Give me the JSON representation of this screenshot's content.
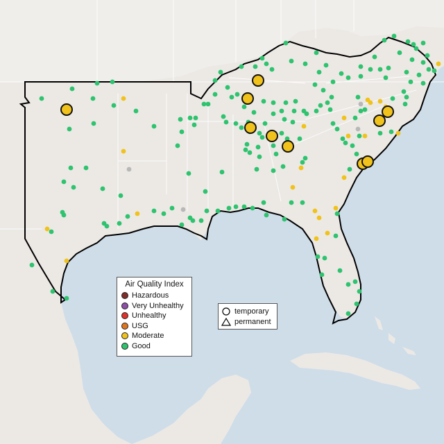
{
  "colors": {
    "ocean": "#cfdde9",
    "land": "#ece9e5",
    "land_light": "#f4f2ef",
    "state_border": "#ffffff",
    "region_outline": "#000000"
  },
  "aqi_legend": {
    "title": "Air Quality Index",
    "items": [
      {
        "label": "Hazardous",
        "color": "#7e2d2a"
      },
      {
        "label": "Very Unhealthy",
        "color": "#8e4fa8"
      },
      {
        "label": "Unhealthy",
        "color": "#e0322b"
      },
      {
        "label": "USG",
        "color": "#e0761e"
      },
      {
        "label": "Moderate",
        "color": "#f0c21b"
      },
      {
        "label": "Good",
        "color": "#2ec36e"
      }
    ]
  },
  "type_legend": {
    "items": [
      {
        "label": "temporary",
        "icon": "circle-icon"
      },
      {
        "label": "permanent",
        "icon": "triangle-icon"
      }
    ]
  }
}
